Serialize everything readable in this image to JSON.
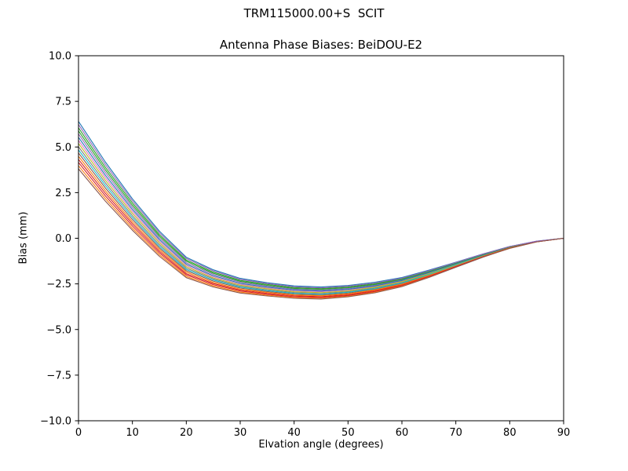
{
  "figure": {
    "title": "TRM115000.00+S  SCIT",
    "background_color": "#ffffff",
    "axis_color": "#000000"
  },
  "chart_data": {
    "type": "line",
    "title": "Antenna Phase Biases: BeiDOU-E2",
    "xlabel": "Elvation angle (degrees)",
    "ylabel": "Bias (mm)",
    "xlim": [
      0,
      90
    ],
    "ylim": [
      -10,
      10
    ],
    "grid": false,
    "legend_position": "none",
    "xticks": [
      {
        "v": 0,
        "label": "0"
      },
      {
        "v": 10,
        "label": "10"
      },
      {
        "v": 20,
        "label": "20"
      },
      {
        "v": 30,
        "label": "30"
      },
      {
        "v": 40,
        "label": "40"
      },
      {
        "v": 50,
        "label": "50"
      },
      {
        "v": 60,
        "label": "60"
      },
      {
        "v": 70,
        "label": "70"
      },
      {
        "v": 80,
        "label": "80"
      },
      {
        "v": 90,
        "label": "90"
      }
    ],
    "yticks": [
      {
        "v": 10,
        "label": "10.0"
      },
      {
        "v": 7.5,
        "label": "7.5"
      },
      {
        "v": 5,
        "label": "5.0"
      },
      {
        "v": 2.5,
        "label": "2.5"
      },
      {
        "v": 0,
        "label": "0.0"
      },
      {
        "v": -2.5,
        "label": "−2.5"
      },
      {
        "v": -5,
        "label": "−5.0"
      },
      {
        "v": -7.5,
        "label": "−7.5"
      },
      {
        "v": -10,
        "label": "−10.0"
      }
    ],
    "x": [
      0,
      5,
      10,
      15,
      20,
      25,
      30,
      35,
      40,
      45,
      50,
      55,
      60,
      65,
      70,
      75,
      80,
      85,
      90
    ],
    "series": [
      {
        "color": "#1f77b4",
        "values": [
          6.4,
          4.17,
          2.16,
          0.39,
          -1.04,
          -1.73,
          -2.2,
          -2.44,
          -2.61,
          -2.67,
          -2.59,
          -2.41,
          -2.15,
          -1.75,
          -1.31,
          -0.86,
          -0.45,
          -0.16,
          0.0
        ]
      },
      {
        "color": "#ff7f0e",
        "values": [
          3.97,
          2.17,
          0.55,
          -0.9,
          -2.09,
          -2.61,
          -2.95,
          -3.12,
          -3.24,
          -3.28,
          -3.17,
          -2.95,
          -2.61,
          -2.12,
          -1.57,
          -1.03,
          -0.55,
          -0.2,
          0.0
        ]
      },
      {
        "color": "#2ca02c",
        "values": [
          6.05,
          3.88,
          1.93,
          0.2,
          -1.19,
          -1.86,
          -2.31,
          -2.53,
          -2.7,
          -2.76,
          -2.67,
          -2.49,
          -2.22,
          -1.81,
          -1.35,
          -0.88,
          -0.46,
          -0.17,
          0.0
        ]
      },
      {
        "color": "#d62728",
        "values": [
          4.32,
          2.46,
          0.79,
          -0.71,
          -1.94,
          -2.48,
          -2.84,
          -3.02,
          -3.15,
          -3.2,
          -3.09,
          -2.87,
          -2.55,
          -2.07,
          -1.54,
          -1.0,
          -0.53,
          -0.19,
          0.0
        ]
      },
      {
        "color": "#9467bd",
        "values": [
          5.71,
          3.6,
          1.7,
          0.02,
          -1.34,
          -1.98,
          -2.41,
          -2.63,
          -2.79,
          -2.85,
          -2.75,
          -2.57,
          -2.28,
          -1.86,
          -1.38,
          -0.91,
          -0.48,
          -0.17,
          0.0
        ]
      },
      {
        "color": "#8c564b",
        "values": [
          4.67,
          2.75,
          1.02,
          -0.53,
          -1.78,
          -2.35,
          -2.73,
          -2.92,
          -3.06,
          -3.11,
          -3.0,
          -2.79,
          -2.48,
          -2.01,
          -1.5,
          -0.98,
          -0.52,
          -0.19,
          0.0
        ]
      },
      {
        "color": "#e377c2",
        "values": [
          5.36,
          3.31,
          1.47,
          -0.16,
          -1.49,
          -2.11,
          -2.52,
          -2.73,
          -2.88,
          -2.93,
          -2.84,
          -2.64,
          -2.35,
          -1.91,
          -1.42,
          -0.93,
          -0.49,
          -0.18,
          0.0
        ]
      },
      {
        "color": "#7f7f7f",
        "values": [
          5.01,
          3.03,
          1.24,
          -0.35,
          -1.64,
          -2.23,
          -2.63,
          -2.83,
          -2.97,
          -3.02,
          -2.92,
          -2.72,
          -2.42,
          -1.96,
          -1.46,
          -0.96,
          -0.5,
          -0.18,
          0.0
        ]
      },
      {
        "color": "#bcbd22",
        "values": [
          5.19,
          3.17,
          1.36,
          -0.25,
          -1.56,
          -2.17,
          -2.57,
          -2.77,
          -2.93,
          -2.98,
          -2.88,
          -2.68,
          -2.38,
          -1.94,
          -1.44,
          -0.94,
          -0.5,
          -0.18,
          0.0
        ]
      },
      {
        "color": "#17becf",
        "values": [
          4.84,
          2.89,
          1.13,
          -0.44,
          -1.71,
          -2.29,
          -2.68,
          -2.87,
          -3.02,
          -3.07,
          -2.96,
          -2.76,
          -2.45,
          -1.99,
          -1.48,
          -0.97,
          -0.51,
          -0.18,
          0.0
        ]
      },
      {
        "color": "#1f77b4",
        "values": [
          5.53,
          3.45,
          1.58,
          -0.07,
          -1.42,
          -2.05,
          -2.47,
          -2.68,
          -2.84,
          -2.89,
          -2.8,
          -2.61,
          -2.32,
          -1.89,
          -1.4,
          -0.92,
          -0.48,
          -0.17,
          0.0
        ]
      },
      {
        "color": "#ff7f0e",
        "values": [
          4.49,
          2.6,
          0.9,
          -0.62,
          -1.86,
          -2.42,
          -2.79,
          -2.97,
          -3.11,
          -3.15,
          -3.05,
          -2.83,
          -2.52,
          -2.04,
          -1.52,
          -0.99,
          -0.52,
          -0.19,
          0.0
        ]
      },
      {
        "color": "#2ca02c",
        "values": [
          5.88,
          3.74,
          1.81,
          0.11,
          -1.26,
          -1.92,
          -2.36,
          -2.58,
          -2.75,
          -2.8,
          -2.71,
          -2.53,
          -2.25,
          -1.83,
          -1.36,
          -0.9,
          -0.47,
          -0.17,
          0.0
        ]
      },
      {
        "color": "#d62728",
        "values": [
          4.15,
          2.32,
          0.67,
          -0.8,
          -2.01,
          -2.54,
          -2.89,
          -3.07,
          -3.2,
          -3.24,
          -3.13,
          -2.91,
          -2.58,
          -2.09,
          -1.55,
          -1.02,
          -0.54,
          -0.19,
          0.0
        ]
      },
      {
        "color": "#9467bd",
        "values": [
          6.23,
          4.03,
          2.05,
          0.3,
          -1.11,
          -1.79,
          -2.25,
          -2.48,
          -2.66,
          -2.72,
          -2.63,
          -2.45,
          -2.19,
          -1.78,
          -1.33,
          -0.87,
          -0.45,
          -0.16,
          0.0
        ]
      },
      {
        "color": "#8c564b",
        "values": [
          3.8,
          2.03,
          0.44,
          -0.99,
          -2.16,
          -2.67,
          -3.0,
          -3.16,
          -3.29,
          -3.33,
          -3.21,
          -2.99,
          -2.65,
          -2.15,
          -1.59,
          -1.04,
          -0.55,
          -0.2,
          0.0
        ]
      }
    ]
  }
}
